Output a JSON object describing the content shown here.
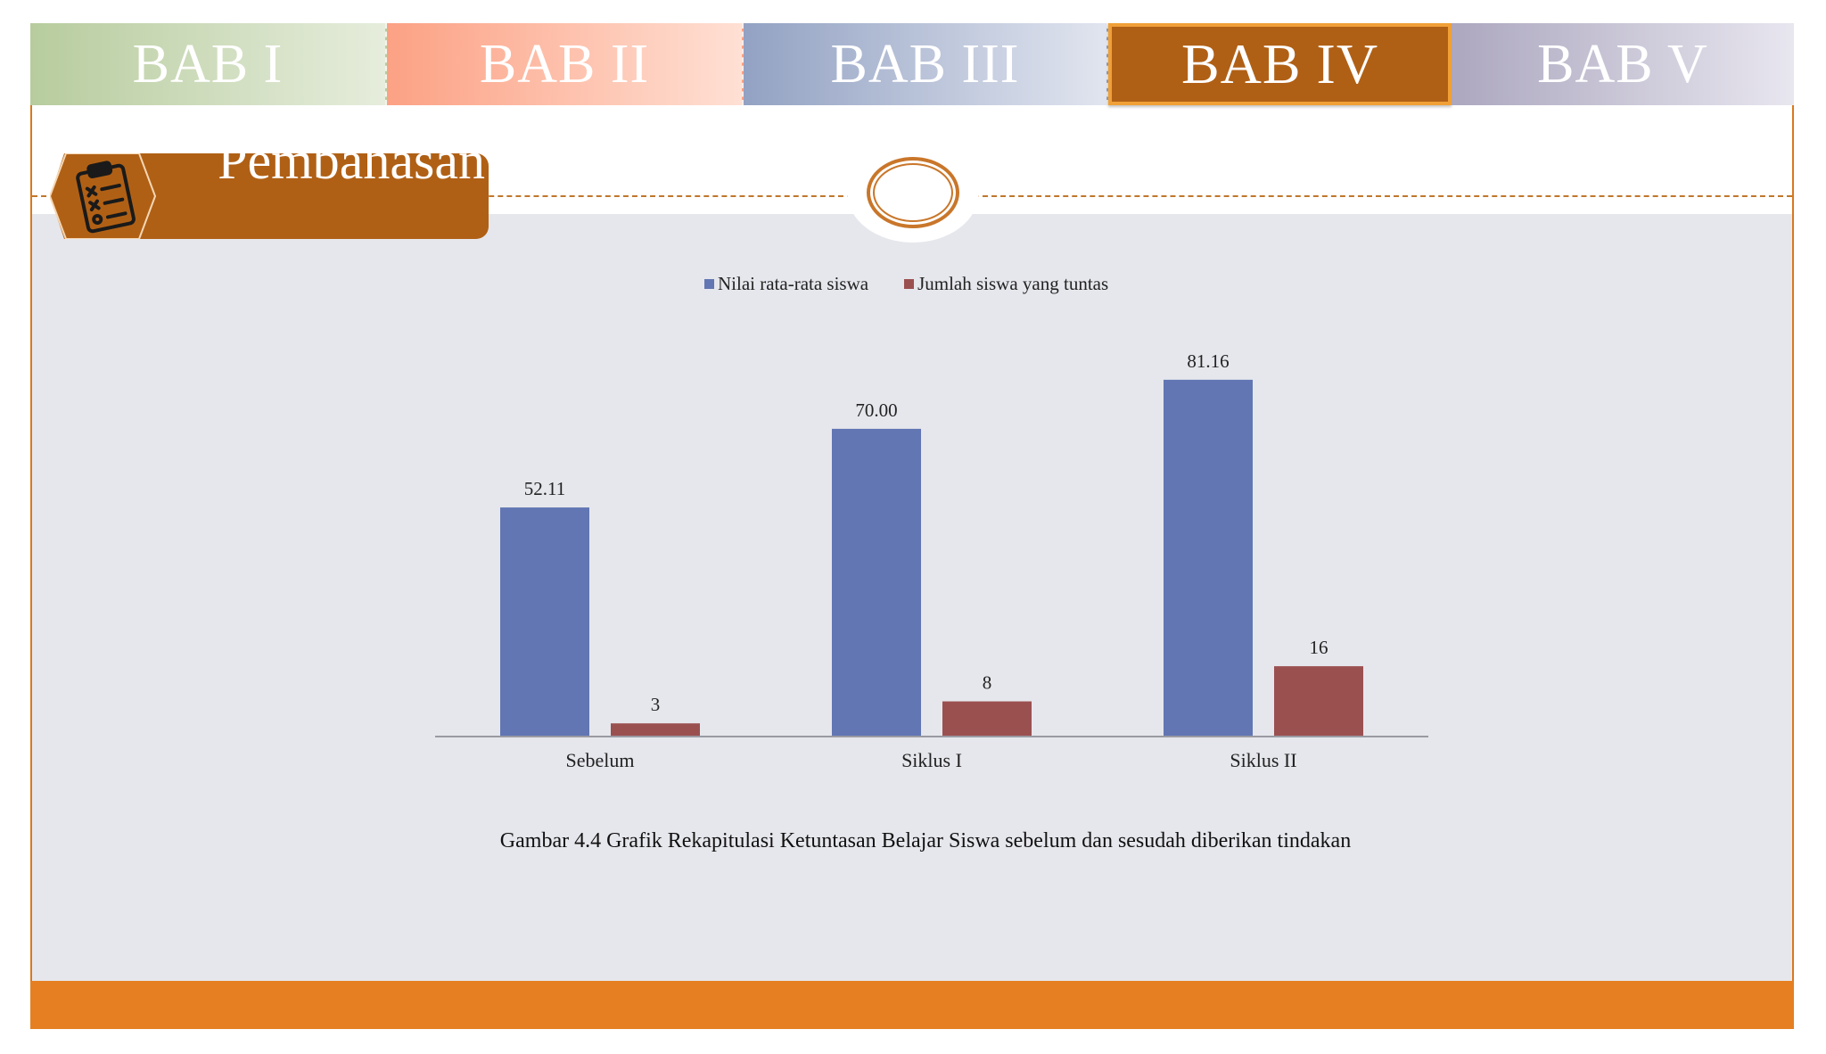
{
  "nav": {
    "tabs": [
      {
        "label": "BAB I"
      },
      {
        "label": "BAB II"
      },
      {
        "label": "BAB III"
      },
      {
        "label": "BAB IV"
      },
      {
        "label": "BAB V"
      }
    ],
    "active": "BAB IV"
  },
  "section": {
    "title": "Pembahasan",
    "icon": "clipboard-checklist-icon"
  },
  "colors": {
    "accent": "#b06015",
    "footer": "#e57f22",
    "series_1": "#6176b3",
    "series_2": "#9b5050"
  },
  "chart_data": {
    "type": "bar",
    "categories": [
      "Sebelum",
      "Siklus I",
      "Siklus II"
    ],
    "series": [
      {
        "name": "Nilai rata-rata siswa",
        "values": [
          52.11,
          70.0,
          81.16
        ],
        "labels": [
          "52.11",
          "70.00",
          "81.16"
        ]
      },
      {
        "name": "Jumlah siswa yang tuntas",
        "values": [
          3,
          8,
          16
        ],
        "labels": [
          "3",
          "8",
          "16"
        ]
      }
    ],
    "ylim": [
      0,
      90
    ],
    "legend": "top-center",
    "grid": false
  },
  "caption": "Gambar 4.4 Grafik Rekapitulasi Ketuntasan Belajar Siswa sebelum dan sesudah diberikan tindakan"
}
